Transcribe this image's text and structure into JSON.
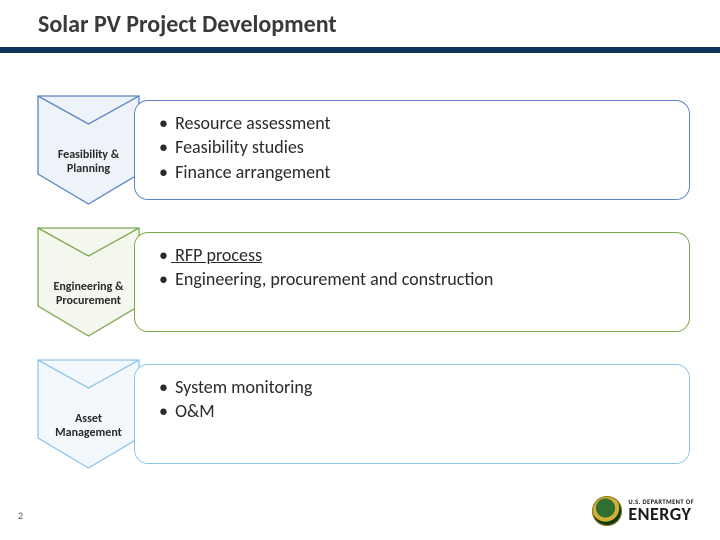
{
  "title": "Solar PV Project Development",
  "rule_color": "#10315a",
  "page_number": "2",
  "rows": [
    {
      "label_line1": "Feasibility &",
      "label_line2": "Planning",
      "border_color": "#5b84c4",
      "chevron_stroke": "#5b84c4",
      "chevron_fill": "#eef3fa",
      "bullets": [
        {
          "text": "Resource assessment",
          "underline": false
        },
        {
          "text": "Feasibility studies",
          "underline": false
        },
        {
          "text": "Finance arrangement",
          "underline": false
        }
      ]
    },
    {
      "label_line1": "Engineering &",
      "label_line2": "Procurement",
      "border_color": "#7ca84e",
      "chevron_stroke": "#7ca84e",
      "chevron_fill": "#f3f7ee",
      "bullets": [
        {
          "text": "RFP process",
          "underline": true
        },
        {
          "text": "Engineering, procurement and construction",
          "underline": false
        }
      ]
    },
    {
      "label_line1": "Asset",
      "label_line2": "Management",
      "border_color": "#8fc6e8",
      "chevron_stroke": "#8fc6e8",
      "chevron_fill": "#f2f8fc",
      "bullets": [
        {
          "text": "System monitoring",
          "underline": false
        },
        {
          "text": "O&M",
          "underline": false
        }
      ]
    }
  ],
  "logo": {
    "dept_line": "U.S. DEPARTMENT OF",
    "energy": "ENERGY"
  }
}
